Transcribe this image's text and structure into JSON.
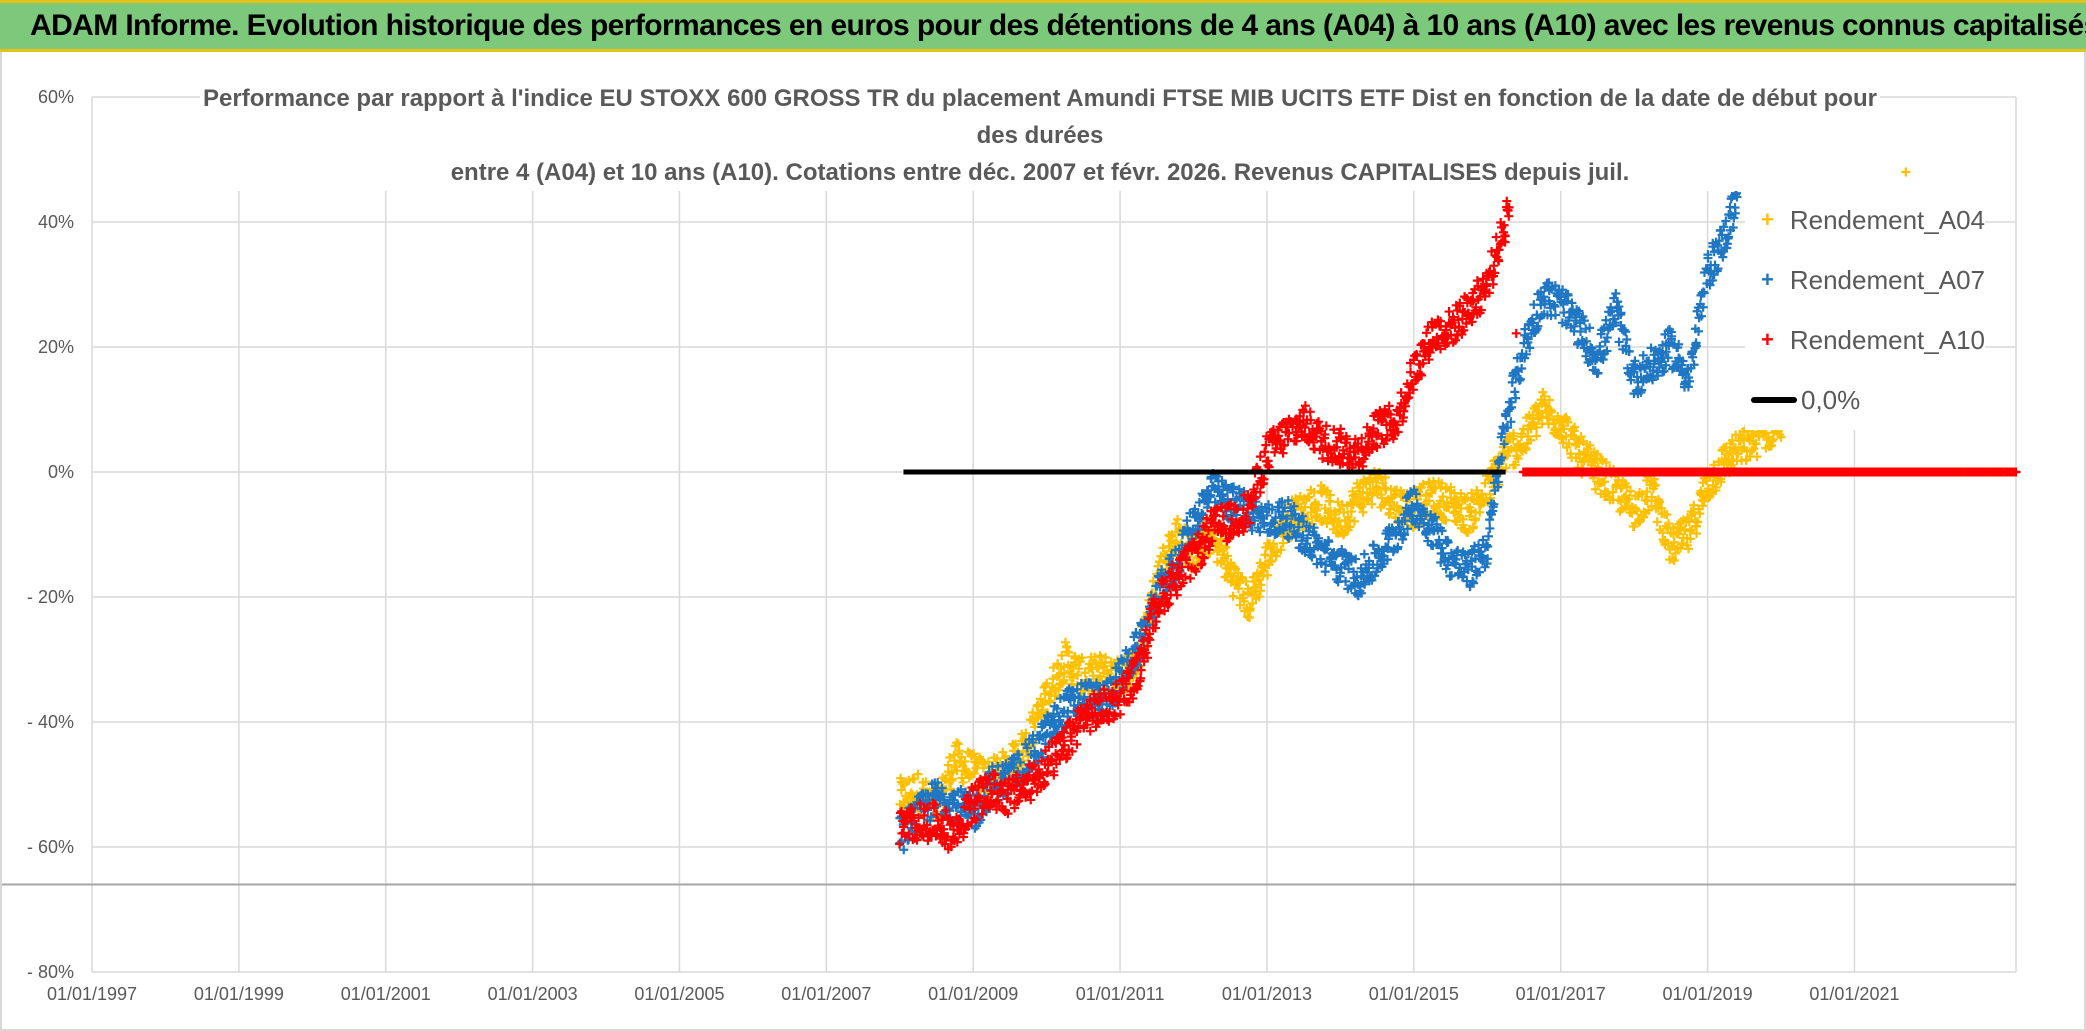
{
  "banner": {
    "title": "ADAM Informe. Evolution historique des performances en euros pour des détentions de 4 ans (A04) à 10 ans (A10) avec les revenus connus capitalisés"
  },
  "chart_data": {
    "type": "scatter",
    "title_lines": [
      "Performance par rapport à l'indice EU STOXX 600 GROSS TR  du placement Amundi FTSE MIB UCITS ETF Dist en fonction de la date de début pour",
      "des durées",
      "entre 4 (A04) et 10 ans (A10). Cotations entre déc. 2007 et févr. 2026. Revenus CAPITALISES depuis juil."
    ],
    "x_ticks": [
      "01/01/1997",
      "01/01/1999",
      "01/01/2001",
      "01/01/2003",
      "01/01/2005",
      "01/01/2007",
      "01/01/2009",
      "01/01/2011",
      "01/01/2013",
      "01/01/2015",
      "01/01/2017",
      "01/01/2019",
      "01/01/2021"
    ],
    "y_ticks": [
      "60%",
      "40%",
      "20%",
      "0%",
      "- 20%",
      "- 40%",
      "- 60%",
      "- 80%"
    ],
    "xlim": [
      1997.0,
      2023.2
    ],
    "ylim": [
      -80,
      60
    ],
    "grid": true,
    "legend_position": "top-right",
    "reference_y": -66,
    "series": [
      {
        "name": "Rendement_A04",
        "color": "#ffc000",
        "marker": "+",
        "points": [
          [
            2008.0,
            -52
          ],
          [
            2008.25,
            -51
          ],
          [
            2008.5,
            -54
          ],
          [
            2008.75,
            -46
          ],
          [
            2009.0,
            -48
          ],
          [
            2009.25,
            -49
          ],
          [
            2009.5,
            -47
          ],
          [
            2009.75,
            -43
          ],
          [
            2010.0,
            -36
          ],
          [
            2010.25,
            -30
          ],
          [
            2010.5,
            -33
          ],
          [
            2010.75,
            -32
          ],
          [
            2011.0,
            -33
          ],
          [
            2011.25,
            -30
          ],
          [
            2011.5,
            -17
          ],
          [
            2011.75,
            -10
          ],
          [
            2012.0,
            -13
          ],
          [
            2012.25,
            -10
          ],
          [
            2012.5,
            -16
          ],
          [
            2012.75,
            -21
          ],
          [
            2013.0,
            -14
          ],
          [
            2013.25,
            -8
          ],
          [
            2013.5,
            -6
          ],
          [
            2013.75,
            -5
          ],
          [
            2014.0,
            -8
          ],
          [
            2014.25,
            -4
          ],
          [
            2014.5,
            -2
          ],
          [
            2014.75,
            -5
          ],
          [
            2015.0,
            -6
          ],
          [
            2015.25,
            -4
          ],
          [
            2015.5,
            -5
          ],
          [
            2015.75,
            -7
          ],
          [
            2016.0,
            -3
          ],
          [
            2016.25,
            3
          ],
          [
            2016.5,
            5
          ],
          [
            2016.75,
            10
          ],
          [
            2017.0,
            8
          ],
          [
            2017.25,
            3
          ],
          [
            2017.5,
            0
          ],
          [
            2017.75,
            -3
          ],
          [
            2018.0,
            -6
          ],
          [
            2018.25,
            -3
          ],
          [
            2018.5,
            -12
          ],
          [
            2018.75,
            -10
          ],
          [
            2019.0,
            -2
          ],
          [
            2019.25,
            2
          ],
          [
            2019.5,
            4
          ],
          [
            2019.75,
            6
          ],
          [
            2020.0,
            8
          ],
          [
            2021.7,
            48
          ]
        ]
      },
      {
        "name": "Rendement_A07",
        "color": "#1f77c4",
        "marker": "+",
        "points": [
          [
            2008.0,
            -58
          ],
          [
            2008.25,
            -55
          ],
          [
            2008.5,
            -52
          ],
          [
            2008.75,
            -53
          ],
          [
            2009.0,
            -55
          ],
          [
            2009.25,
            -50
          ],
          [
            2009.5,
            -49
          ],
          [
            2009.75,
            -46
          ],
          [
            2010.0,
            -42
          ],
          [
            2010.25,
            -38
          ],
          [
            2010.5,
            -36
          ],
          [
            2010.75,
            -37
          ],
          [
            2011.0,
            -33
          ],
          [
            2011.25,
            -28
          ],
          [
            2011.5,
            -20
          ],
          [
            2011.75,
            -15
          ],
          [
            2012.0,
            -8
          ],
          [
            2012.25,
            -3
          ],
          [
            2012.5,
            -5
          ],
          [
            2012.75,
            -6
          ],
          [
            2013.0,
            -8
          ],
          [
            2013.25,
            -7
          ],
          [
            2013.5,
            -10
          ],
          [
            2013.75,
            -13
          ],
          [
            2014.0,
            -15
          ],
          [
            2014.25,
            -17
          ],
          [
            2014.5,
            -14
          ],
          [
            2014.75,
            -10
          ],
          [
            2015.0,
            -5
          ],
          [
            2015.25,
            -9
          ],
          [
            2015.5,
            -14
          ],
          [
            2015.75,
            -16
          ],
          [
            2016.0,
            -12
          ],
          [
            2016.25,
            8
          ],
          [
            2016.5,
            20
          ],
          [
            2016.75,
            28
          ],
          [
            2017.0,
            27
          ],
          [
            2017.25,
            23
          ],
          [
            2017.5,
            18
          ],
          [
            2017.75,
            26
          ],
          [
            2018.0,
            15
          ],
          [
            2018.25,
            17
          ],
          [
            2018.5,
            20
          ],
          [
            2018.75,
            15
          ],
          [
            2019.0,
            32
          ],
          [
            2019.25,
            38
          ],
          [
            2019.4,
            44
          ]
        ]
      },
      {
        "name": "Rendement_A10",
        "color": "#ff0000",
        "marker": "+",
        "points": [
          [
            2008.0,
            -57
          ],
          [
            2008.25,
            -56
          ],
          [
            2008.5,
            -56
          ],
          [
            2008.75,
            -58
          ],
          [
            2009.0,
            -53
          ],
          [
            2009.25,
            -51
          ],
          [
            2009.5,
            -52
          ],
          [
            2009.75,
            -50
          ],
          [
            2010.0,
            -47
          ],
          [
            2010.25,
            -44
          ],
          [
            2010.5,
            -39
          ],
          [
            2010.75,
            -38
          ],
          [
            2011.0,
            -36
          ],
          [
            2011.25,
            -32
          ],
          [
            2011.5,
            -21
          ],
          [
            2011.75,
            -17
          ],
          [
            2012.0,
            -14
          ],
          [
            2012.25,
            -9
          ],
          [
            2012.5,
            -8
          ],
          [
            2012.75,
            -6
          ],
          [
            2013.0,
            3
          ],
          [
            2013.25,
            6
          ],
          [
            2013.5,
            8
          ],
          [
            2013.75,
            5
          ],
          [
            2014.0,
            4
          ],
          [
            2014.25,
            3
          ],
          [
            2014.5,
            7
          ],
          [
            2014.75,
            8
          ],
          [
            2015.0,
            16
          ],
          [
            2015.25,
            22
          ],
          [
            2015.5,
            23
          ],
          [
            2015.75,
            26
          ],
          [
            2016.0,
            30
          ],
          [
            2016.25,
            40
          ],
          [
            2016.3,
            44
          ],
          [
            2016.5,
            0
          ],
          [
            2017.0,
            0
          ],
          [
            2017.5,
            0
          ],
          [
            2018.0,
            0
          ],
          [
            2018.5,
            0
          ],
          [
            2019.0,
            0
          ],
          [
            2019.5,
            0
          ],
          [
            2020.0,
            0
          ],
          [
            2020.5,
            0
          ],
          [
            2021.0,
            0
          ],
          [
            2021.5,
            0
          ],
          [
            2022.0,
            0
          ],
          [
            2022.5,
            0
          ],
          [
            2023.0,
            0
          ],
          [
            2023.2,
            0
          ]
        ]
      },
      {
        "name": "0,0%",
        "color": "#000000",
        "marker": "line",
        "points": [
          [
            2008.05,
            0
          ],
          [
            2016.25,
            0
          ]
        ]
      }
    ]
  }
}
